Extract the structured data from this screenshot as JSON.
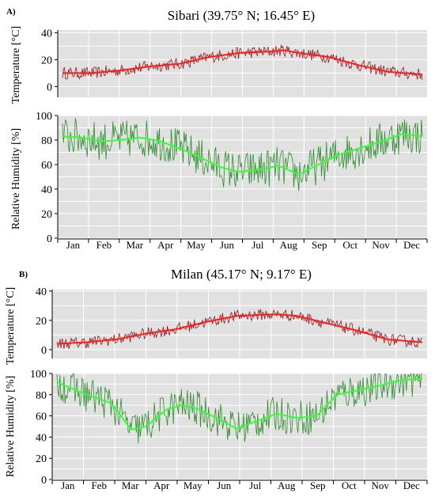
{
  "figure": {
    "months": [
      "Jan",
      "Feb",
      "Mar",
      "Apr",
      "May",
      "Jun",
      "Jul",
      "Aug",
      "Sep",
      "Oct",
      "Nov",
      "Dec"
    ],
    "panels": [
      {
        "letter": "A)",
        "title": "Sibari (39.75° N; 16.45° E)"
      },
      {
        "letter": "B)",
        "title": "Milan (45.17° N; 9.17° E)"
      }
    ]
  },
  "chart_data": [
    {
      "type": "line",
      "panel": "A",
      "ylabel": "Temperature [°C]",
      "ylim": [
        -8,
        42
      ],
      "yticks": [
        0,
        20,
        40
      ],
      "grid": true,
      "x_unit": "day of year",
      "series": [
        {
          "role": "daily",
          "color": "#8b1c24",
          "x": [
            1,
            30,
            60,
            90,
            120,
            150,
            180,
            210,
            225,
            240,
            270,
            300,
            330,
            365
          ],
          "y": [
            10,
            10,
            12,
            15,
            17,
            22,
            25,
            26,
            27,
            25,
            22,
            16,
            11,
            9
          ],
          "noise": 4.5
        },
        {
          "role": "smoothed",
          "color": "#ff1a1a",
          "x": [
            1,
            30,
            60,
            90,
            120,
            150,
            180,
            210,
            225,
            240,
            270,
            300,
            330,
            365
          ],
          "y": [
            10,
            10,
            12,
            15,
            17,
            22,
            25,
            26,
            27,
            25,
            22,
            16,
            11,
            9
          ]
        }
      ]
    },
    {
      "type": "line",
      "panel": "A",
      "ylabel": "Relative Humidity [%]",
      "ylim": [
        0,
        100
      ],
      "yticks": [
        0,
        20,
        40,
        60,
        80,
        100
      ],
      "grid": true,
      "x_unit": "day of year",
      "series": [
        {
          "role": "daily",
          "color": "#2e8b2e",
          "x": [
            1,
            20,
            40,
            60,
            80,
            100,
            120,
            140,
            160,
            180,
            200,
            220,
            240,
            260,
            280,
            300,
            320,
            345,
            365
          ],
          "y": [
            83,
            82,
            79,
            80,
            82,
            79,
            73,
            66,
            58,
            54,
            56,
            59,
            52,
            60,
            68,
            73,
            78,
            85,
            83
          ],
          "noise": 16
        },
        {
          "role": "smoothed",
          "color": "#33ff33",
          "x": [
            1,
            20,
            40,
            60,
            80,
            100,
            120,
            140,
            160,
            180,
            200,
            220,
            240,
            260,
            280,
            300,
            320,
            345,
            365
          ],
          "y": [
            83,
            82,
            79,
            80,
            82,
            79,
            73,
            66,
            58,
            54,
            56,
            59,
            52,
            60,
            68,
            73,
            78,
            85,
            83
          ]
        }
      ]
    },
    {
      "type": "line",
      "panel": "B",
      "ylabel": "Temperature [°C]",
      "ylim": [
        -6,
        41
      ],
      "yticks": [
        0,
        20,
        40
      ],
      "grid": true,
      "x_unit": "day of year",
      "series": [
        {
          "role": "daily",
          "color": "#8b1c24",
          "x": [
            1,
            30,
            60,
            90,
            120,
            150,
            180,
            210,
            225,
            240,
            270,
            300,
            330,
            365
          ],
          "y": [
            4,
            5,
            7,
            11,
            14,
            19,
            23,
            24,
            24,
            23,
            18,
            13,
            7,
            5
          ],
          "noise": 4
        },
        {
          "role": "smoothed",
          "color": "#ff1a1a",
          "x": [
            1,
            30,
            60,
            90,
            120,
            150,
            180,
            210,
            225,
            240,
            270,
            300,
            330,
            365
          ],
          "y": [
            4,
            5,
            7,
            11,
            14,
            19,
            23,
            24,
            24,
            23,
            18,
            13,
            7,
            5
          ]
        }
      ]
    },
    {
      "type": "line",
      "panel": "B",
      "ylabel": "Relative Humidity [%]",
      "ylim": [
        0,
        100
      ],
      "yticks": [
        0,
        20,
        40,
        60,
        80,
        100
      ],
      "grid": true,
      "x_unit": "day of year",
      "series": [
        {
          "role": "daily",
          "color": "#2e8b2e",
          "x": [
            1,
            20,
            40,
            55,
            75,
            90,
            110,
            125,
            140,
            160,
            180,
            200,
            220,
            240,
            260,
            280,
            300,
            320,
            345,
            365
          ],
          "y": [
            92,
            84,
            77,
            72,
            47,
            50,
            66,
            70,
            67,
            58,
            48,
            55,
            62,
            58,
            60,
            80,
            84,
            88,
            94,
            95
          ],
          "noise": 17
        },
        {
          "role": "smoothed",
          "color": "#33ff33",
          "x": [
            1,
            20,
            40,
            55,
            75,
            90,
            110,
            125,
            140,
            160,
            180,
            200,
            220,
            240,
            260,
            280,
            300,
            320,
            345,
            365
          ],
          "y": [
            92,
            84,
            77,
            72,
            47,
            50,
            66,
            70,
            67,
            58,
            48,
            55,
            62,
            58,
            60,
            80,
            84,
            88,
            94,
            95
          ]
        }
      ]
    }
  ]
}
